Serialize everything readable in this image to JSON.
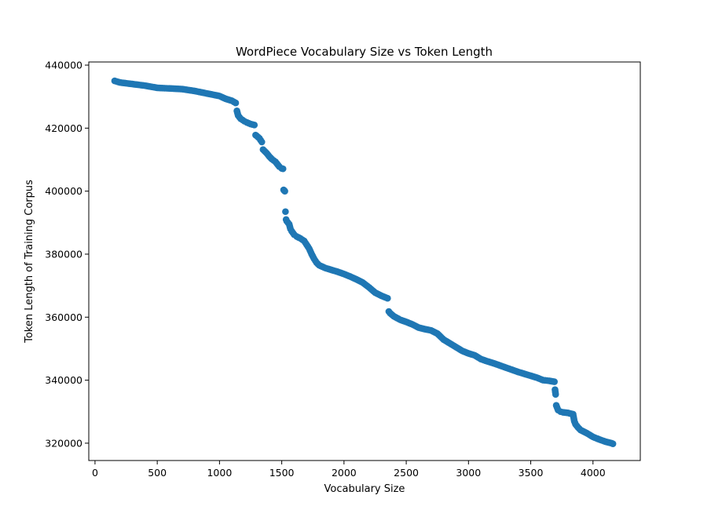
{
  "chart_data": {
    "type": "scatter",
    "title": "WordPiece Vocabulary Size vs Token Length",
    "xlabel": "Vocabulary Size",
    "ylabel": "Token Length of Training Corpus",
    "xlim": [
      -50,
      4380
    ],
    "ylim": [
      314500,
      441000
    ],
    "xticks": [
      0,
      500,
      1000,
      1500,
      2000,
      2500,
      3000,
      3500,
      4000
    ],
    "xtick_labels": [
      "0",
      "500",
      "1000",
      "1500",
      "2000",
      "2500",
      "3000",
      "3500",
      "4000"
    ],
    "yticks": [
      320000,
      340000,
      360000,
      380000,
      400000,
      420000,
      440000
    ],
    "ytick_labels": [
      "320000",
      "340000",
      "360000",
      "380000",
      "400000",
      "420000",
      "440000"
    ],
    "grid": false,
    "legend": "none",
    "marker_color": "#1f77b4",
    "series": [
      {
        "x": [
          158,
          200,
          300,
          400,
          500,
          600,
          700,
          800,
          900,
          1000,
          1050,
          1100,
          1130,
          1140,
          1150,
          1170,
          1200,
          1220,
          1250,
          1280,
          1290,
          1300,
          1320,
          1340,
          1350,
          1360,
          1380,
          1400,
          1420,
          1450,
          1480,
          1500,
          1510,
          1515,
          1520,
          1525,
          1530,
          1535,
          1540,
          1550,
          1560,
          1570,
          1580,
          1600,
          1620,
          1650,
          1680,
          1700,
          1720,
          1740,
          1760,
          1780,
          1800,
          1850,
          1900,
          1950,
          2000,
          2050,
          2100,
          2150,
          2200,
          2250,
          2300,
          2350,
          2360,
          2370,
          2400,
          2450,
          2500,
          2550,
          2600,
          2650,
          2700,
          2750,
          2800,
          2850,
          2900,
          2950,
          3000,
          3050,
          3100,
          3150,
          3200,
          3250,
          3300,
          3350,
          3400,
          3450,
          3500,
          3550,
          3600,
          3650,
          3690,
          3695,
          3700,
          3705,
          3710,
          3715,
          3720,
          3740,
          3760,
          3800,
          3840,
          3850,
          3860,
          3880,
          3900,
          3950,
          4000,
          4050,
          4100,
          4150,
          4160
        ],
        "y": [
          435000,
          434500,
          434000,
          433500,
          432800,
          432600,
          432400,
          431800,
          431000,
          430200,
          429300,
          428700,
          428000,
          425500,
          424000,
          423000,
          422200,
          421800,
          421300,
          421000,
          417800,
          417500,
          416800,
          415600,
          413200,
          412800,
          412000,
          411000,
          410200,
          409300,
          407800,
          407200,
          407100,
          400400,
          400200,
          400000,
          393500,
          391000,
          390500,
          390000,
          389500,
          388000,
          387300,
          386200,
          385600,
          385000,
          384200,
          383000,
          381800,
          380000,
          378500,
          377300,
          376500,
          375600,
          375000,
          374400,
          373700,
          372900,
          372000,
          371000,
          369500,
          367800,
          366800,
          366000,
          361800,
          361300,
          360300,
          359200,
          358500,
          357700,
          356700,
          356200,
          355800,
          354800,
          352900,
          351700,
          350500,
          349300,
          348500,
          347900,
          346700,
          346000,
          345400,
          344700,
          344000,
          343300,
          342600,
          342000,
          341400,
          340800,
          340000,
          339800,
          339500,
          337000,
          335500,
          332000,
          331500,
          331000,
          330500,
          330000,
          329800,
          329600,
          329200,
          327000,
          326000,
          325000,
          324200,
          323200,
          322000,
          321200,
          320500,
          320000,
          319800
        ]
      }
    ]
  }
}
